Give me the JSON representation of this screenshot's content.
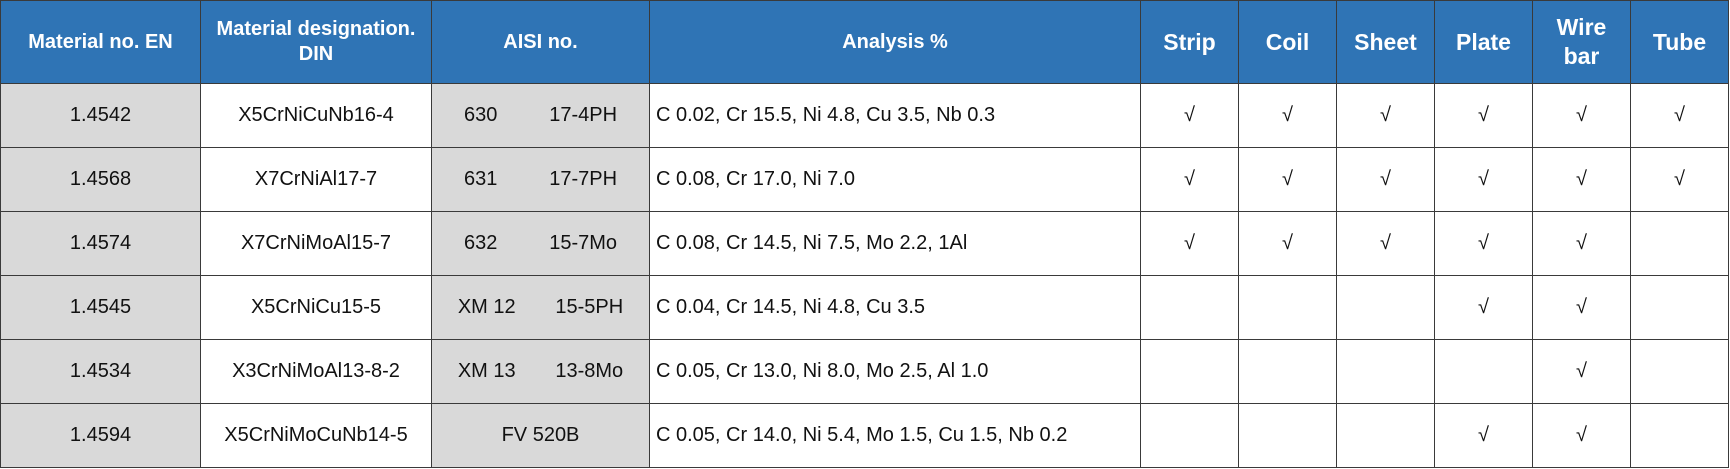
{
  "table": {
    "headers": [
      "Material no. EN",
      "Material designation. DIN",
      "AISI no.",
      "Analysis %",
      "Strip",
      "Coil",
      "Sheet",
      "Plate",
      "Wire bar",
      "Tube"
    ],
    "rows": [
      {
        "en": "1.4542",
        "din": "X5CrNiCuNb16-4",
        "aisi": [
          "630",
          "17-4PH"
        ],
        "analysis": "C 0.02, Cr 15.5, Ni 4.8, Cu 3.5, Nb 0.3",
        "forms": [
          "√",
          "√",
          "√",
          "√",
          "√",
          "√"
        ]
      },
      {
        "en": "1.4568",
        "din": "X7CrNiAl17-7",
        "aisi": [
          "631",
          "17-7PH"
        ],
        "analysis": "C 0.08, Cr 17.0, Ni 7.0",
        "forms": [
          "√",
          "√",
          "√",
          "√",
          "√",
          "√"
        ]
      },
      {
        "en": "1.4574",
        "din": "X7CrNiMoAl15-7",
        "aisi": [
          "632",
          "15-7Mo"
        ],
        "analysis": "C 0.08, Cr 14.5, Ni 7.5, Mo 2.2, 1Al",
        "forms": [
          "√",
          "√",
          "√",
          "√",
          "√",
          null
        ]
      },
      {
        "en": "1.4545",
        "din": "X5CrNiCu15-5",
        "aisi": [
          "XM 12",
          "15-5PH"
        ],
        "analysis": "C 0.04, Cr 14.5, Ni 4.8, Cu 3.5",
        "forms": [
          null,
          null,
          null,
          "√",
          "√",
          null
        ]
      },
      {
        "en": "1.4534",
        "din": "X3CrNiMoAl13-8-2",
        "aisi": [
          "XM 13",
          "13-8Mo"
        ],
        "analysis": "C 0.05, Cr 13.0, Ni 8.0, Mo 2.5, Al 1.0",
        "forms": [
          null,
          null,
          null,
          null,
          "√",
          null
        ]
      },
      {
        "en": "1.4594",
        "din": "X5CrNiMoCuNb14-5",
        "aisi": [
          "FV 520B"
        ],
        "analysis": "C 0.05, Cr 14.0, Ni 5.4, Mo 1.5, Cu 1.5, Nb 0.2",
        "forms": [
          null,
          null,
          null,
          "√",
          "√",
          null
        ]
      }
    ]
  }
}
